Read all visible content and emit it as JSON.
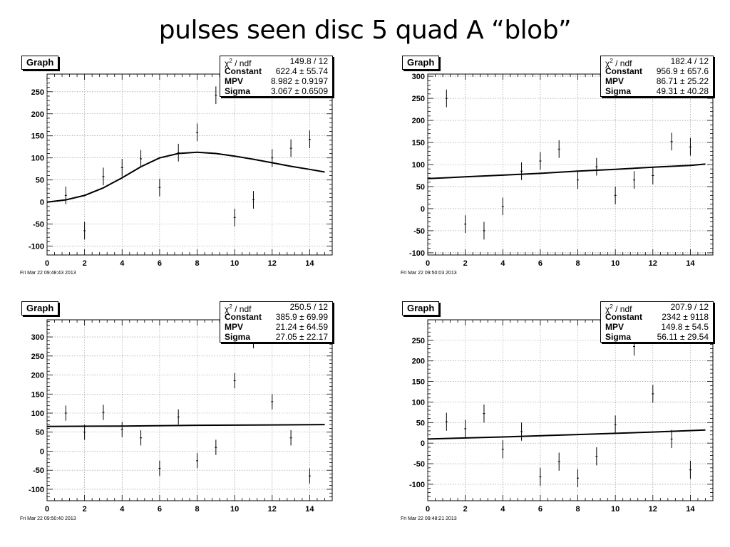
{
  "slide": {
    "title": "pulses seen disc 5 quad A “blob”"
  },
  "chart_data": [
    {
      "type": "scatter",
      "title": "Graph",
      "timestamp": "Fri Mar 22 09:48:43 2013",
      "stats": [
        {
          "key": "χ² / ndf",
          "value": "149.8 / 12"
        },
        {
          "key": "Constant",
          "value": "622.4 ± 55.74"
        },
        {
          "key": "MPV",
          "value": "8.982 ± 0.9197"
        },
        {
          "key": "Sigma",
          "value": "3.067 ± 0.6509"
        }
      ],
      "xlim": [
        0,
        15.2
      ],
      "ylim": [
        -120,
        290
      ],
      "xticks": [
        0,
        2,
        4,
        6,
        8,
        10,
        12,
        14
      ],
      "yticks": [
        -100,
        -50,
        0,
        50,
        100,
        150,
        200,
        250
      ],
      "points": [
        {
          "x": 1,
          "y": 15,
          "err": 20
        },
        {
          "x": 2,
          "y": -65,
          "err": 20
        },
        {
          "x": 3,
          "y": 58,
          "err": 20
        },
        {
          "x": 4,
          "y": 78,
          "err": 20
        },
        {
          "x": 5,
          "y": 98,
          "err": 20
        },
        {
          "x": 6,
          "y": 33,
          "err": 20
        },
        {
          "x": 7,
          "y": 112,
          "err": 20
        },
        {
          "x": 8,
          "y": 158,
          "err": 20
        },
        {
          "x": 9,
          "y": 242,
          "err": 20
        },
        {
          "x": 10,
          "y": -35,
          "err": 20
        },
        {
          "x": 11,
          "y": 5,
          "err": 20
        },
        {
          "x": 12,
          "y": 100,
          "err": 20
        },
        {
          "x": 13,
          "y": 122,
          "err": 20
        },
        {
          "x": 14,
          "y": 142,
          "err": 20
        }
      ],
      "fit": [
        {
          "x": 0,
          "y": 0
        },
        {
          "x": 1,
          "y": 5
        },
        {
          "x": 2,
          "y": 15
        },
        {
          "x": 3,
          "y": 32
        },
        {
          "x": 4,
          "y": 55
        },
        {
          "x": 5,
          "y": 80
        },
        {
          "x": 6,
          "y": 100
        },
        {
          "x": 7,
          "y": 110
        },
        {
          "x": 8,
          "y": 113
        },
        {
          "x": 9,
          "y": 110
        },
        {
          "x": 10,
          "y": 104
        },
        {
          "x": 11,
          "y": 97
        },
        {
          "x": 12,
          "y": 89
        },
        {
          "x": 13,
          "y": 81
        },
        {
          "x": 14,
          "y": 74
        },
        {
          "x": 14.8,
          "y": 68
        }
      ],
      "grid": true
    },
    {
      "type": "scatter",
      "title": "Graph",
      "timestamp": "Fri Mar 22 09:50:03 2013",
      "stats": [
        {
          "key": "χ² / ndf",
          "value": "182.4 / 12"
        },
        {
          "key": "Constant",
          "value": "956.9 ± 657.6"
        },
        {
          "key": "MPV",
          "value": "86.71 ± 25.22"
        },
        {
          "key": "Sigma",
          "value": "49.31 ± 40.28"
        }
      ],
      "xlim": [
        0,
        15.2
      ],
      "ylim": [
        -105,
        305
      ],
      "xticks": [
        0,
        2,
        4,
        6,
        8,
        10,
        12,
        14
      ],
      "yticks": [
        -100,
        -50,
        0,
        50,
        100,
        150,
        200,
        250,
        300
      ],
      "points": [
        {
          "x": 1,
          "y": 250,
          "err": 20
        },
        {
          "x": 2,
          "y": -35,
          "err": 20
        },
        {
          "x": 3,
          "y": -50,
          "err": 20
        },
        {
          "x": 4,
          "y": 5,
          "err": 20
        },
        {
          "x": 5,
          "y": 85,
          "err": 20
        },
        {
          "x": 6,
          "y": 108,
          "err": 20
        },
        {
          "x": 7,
          "y": 135,
          "err": 20
        },
        {
          "x": 8,
          "y": 65,
          "err": 20
        },
        {
          "x": 9,
          "y": 95,
          "err": 20
        },
        {
          "x": 10,
          "y": 30,
          "err": 20
        },
        {
          "x": 11,
          "y": 65,
          "err": 20
        },
        {
          "x": 12,
          "y": 75,
          "err": 20
        },
        {
          "x": 13,
          "y": 152,
          "err": 20
        },
        {
          "x": 14,
          "y": 140,
          "err": 20
        }
      ],
      "fit": [
        {
          "x": 0,
          "y": 68
        },
        {
          "x": 2,
          "y": 72
        },
        {
          "x": 4,
          "y": 76
        },
        {
          "x": 6,
          "y": 80
        },
        {
          "x": 8,
          "y": 85
        },
        {
          "x": 10,
          "y": 89
        },
        {
          "x": 12,
          "y": 94
        },
        {
          "x": 14,
          "y": 98
        },
        {
          "x": 14.8,
          "y": 101
        }
      ],
      "grid": true
    },
    {
      "type": "scatter",
      "title": "Graph",
      "timestamp": "Fri Mar 22 09:50:40 2013",
      "stats": [
        {
          "key": "χ² / ndf",
          "value": "250.5 / 12"
        },
        {
          "key": "Constant",
          "value": "385.9 ± 69.99"
        },
        {
          "key": "MPV",
          "value": "21.24 ± 64.59"
        },
        {
          "key": "Sigma",
          "value": "27.05 ± 22.17"
        }
      ],
      "xlim": [
        0,
        15.2
      ],
      "ylim": [
        -130,
        345
      ],
      "xticks": [
        0,
        2,
        4,
        6,
        8,
        10,
        12,
        14
      ],
      "yticks": [
        -100,
        -50,
        0,
        50,
        100,
        150,
        200,
        250,
        300
      ],
      "points": [
        {
          "x": 1,
          "y": 100,
          "err": 20
        },
        {
          "x": 2,
          "y": 50,
          "err": 20
        },
        {
          "x": 3,
          "y": 102,
          "err": 20
        },
        {
          "x": 4,
          "y": 57,
          "err": 20
        },
        {
          "x": 5,
          "y": 35,
          "err": 20
        },
        {
          "x": 6,
          "y": -45,
          "err": 20
        },
        {
          "x": 7,
          "y": 90,
          "err": 20
        },
        {
          "x": 8,
          "y": -25,
          "err": 20
        },
        {
          "x": 9,
          "y": 10,
          "err": 20
        },
        {
          "x": 10,
          "y": 185,
          "err": 20
        },
        {
          "x": 11,
          "y": 290,
          "err": 20
        },
        {
          "x": 12,
          "y": 130,
          "err": 20
        },
        {
          "x": 13,
          "y": 35,
          "err": 20
        },
        {
          "x": 14,
          "y": -65,
          "err": 20
        }
      ],
      "fit": [
        {
          "x": 0,
          "y": 65
        },
        {
          "x": 4,
          "y": 66
        },
        {
          "x": 8,
          "y": 68
        },
        {
          "x": 12,
          "y": 69
        },
        {
          "x": 14.8,
          "y": 70
        }
      ],
      "grid": true
    },
    {
      "type": "scatter",
      "title": "Graph",
      "timestamp": "Fri Mar 22 09:48:21 2013",
      "stats": [
        {
          "key": "χ² / ndf",
          "value": "207.9 / 12"
        },
        {
          "key": "Constant",
          "value": "2342 ±  9118"
        },
        {
          "key": "MPV",
          "value": "149.8 ±  54.5"
        },
        {
          "key": "Sigma",
          "value": "56.11 ± 29.54"
        }
      ],
      "xlim": [
        0,
        15.2
      ],
      "ylim": [
        -140,
        300
      ],
      "xticks": [
        0,
        2,
        4,
        6,
        8,
        10,
        12,
        14
      ],
      "yticks": [
        -100,
        -50,
        0,
        50,
        100,
        150,
        200,
        250
      ],
      "points": [
        {
          "x": 1,
          "y": 52,
          "err": 22
        },
        {
          "x": 2,
          "y": 35,
          "err": 22
        },
        {
          "x": 3,
          "y": 72,
          "err": 22
        },
        {
          "x": 4,
          "y": -15,
          "err": 22
        },
        {
          "x": 5,
          "y": 28,
          "err": 22
        },
        {
          "x": 6,
          "y": -82,
          "err": 22
        },
        {
          "x": 7,
          "y": -45,
          "err": 22
        },
        {
          "x": 8,
          "y": -85,
          "err": 22
        },
        {
          "x": 9,
          "y": -32,
          "err": 22
        },
        {
          "x": 10,
          "y": 45,
          "err": 22
        },
        {
          "x": 11,
          "y": 235,
          "err": 22
        },
        {
          "x": 12,
          "y": 120,
          "err": 22
        },
        {
          "x": 13,
          "y": 10,
          "err": 22
        },
        {
          "x": 14,
          "y": -65,
          "err": 22
        }
      ],
      "fit": [
        {
          "x": 0,
          "y": 10
        },
        {
          "x": 4,
          "y": 15
        },
        {
          "x": 8,
          "y": 21
        },
        {
          "x": 12,
          "y": 27
        },
        {
          "x": 14.8,
          "y": 32
        }
      ],
      "grid": true
    }
  ]
}
